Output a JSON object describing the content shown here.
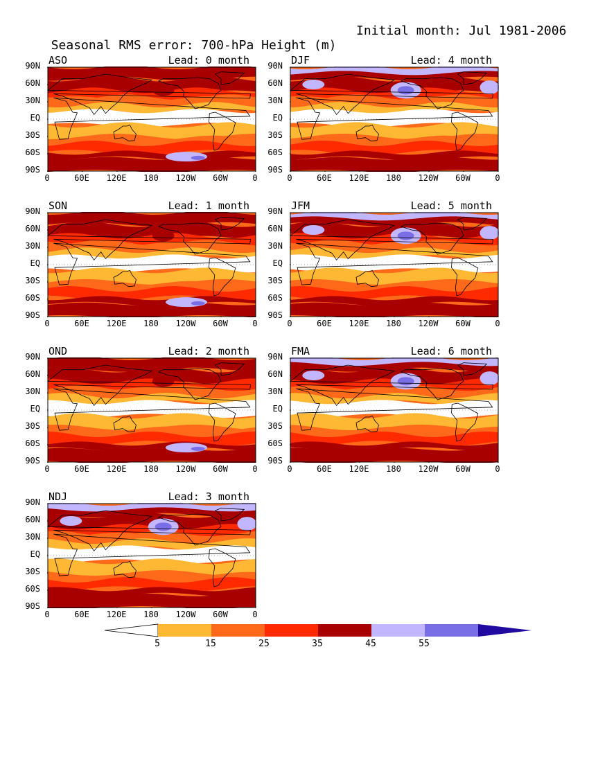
{
  "title": {
    "left": "Seasonal RMS error: 700-hPa Height (m)",
    "right": "Initial month: Jul 1981-2006"
  },
  "panels": [
    {
      "season": "ASO",
      "lead": "Lead: 0 month",
      "col": 0,
      "row": 0
    },
    {
      "season": "DJF",
      "lead": "Lead: 4 month",
      "col": 1,
      "row": 0
    },
    {
      "season": "SON",
      "lead": "Lead: 1 month",
      "col": 0,
      "row": 1
    },
    {
      "season": "JFM",
      "lead": "Lead: 5 month",
      "col": 1,
      "row": 1
    },
    {
      "season": "OND",
      "lead": "Lead: 2 month",
      "col": 0,
      "row": 2
    },
    {
      "season": "FMA",
      "lead": "Lead: 6 month",
      "col": 1,
      "row": 2
    },
    {
      "season": "NDJ",
      "lead": "Lead: 3 month",
      "col": 0,
      "row": 3
    }
  ],
  "lat_ticks": [
    "90N",
    "60N",
    "30N",
    "EQ",
    "30S",
    "60S",
    "90S"
  ],
  "lon_ticks": [
    "0",
    "60E",
    "120E",
    "180",
    "120W",
    "60W",
    "0"
  ],
  "colorbar": {
    "levels": [
      "5",
      "15",
      "25",
      "35",
      "45",
      "55"
    ],
    "colors": [
      "#ffffff",
      "#ffb833",
      "#ff6a1a",
      "#ff2a00",
      "#a80000",
      "#c2b6ff",
      "#7a6ee6",
      "#200aa0"
    ]
  },
  "map_colors": {
    "white": "#ffffff",
    "light_orange": "#ffb833",
    "orange": "#ff6a1a",
    "red": "#ff2a00",
    "dark_red": "#a80000",
    "lavender": "#c2b6ff",
    "periwinkle": "#7a6ee6",
    "indigo": "#200aa0"
  }
}
